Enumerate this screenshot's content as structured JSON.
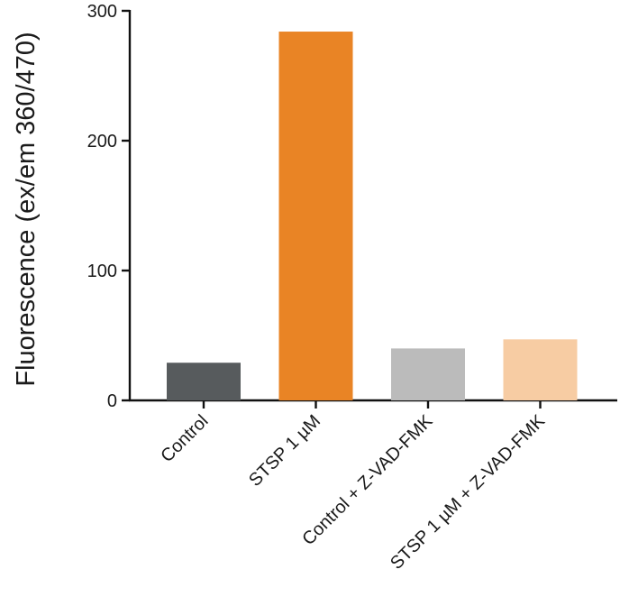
{
  "chart_data": {
    "type": "bar",
    "categories": [
      "Control",
      "STSP 1 µM",
      "Control + Z-VAD-FMK",
      "STSP 1 µM + Z-VAD-FMK"
    ],
    "values": [
      29,
      284,
      40,
      47
    ],
    "colors": [
      "#575b5d",
      "#e98425",
      "#bbbbbb",
      "#f7cca3"
    ],
    "title": "",
    "xlabel": "",
    "ylabel": "Fluorescence (ex/em 360/470)",
    "ylim": [
      0,
      300
    ],
    "yticks": [
      0,
      100,
      200,
      300
    ],
    "ytick_labels": [
      "0",
      "100",
      "200",
      "300"
    ],
    "grid": false,
    "legend": "none"
  }
}
